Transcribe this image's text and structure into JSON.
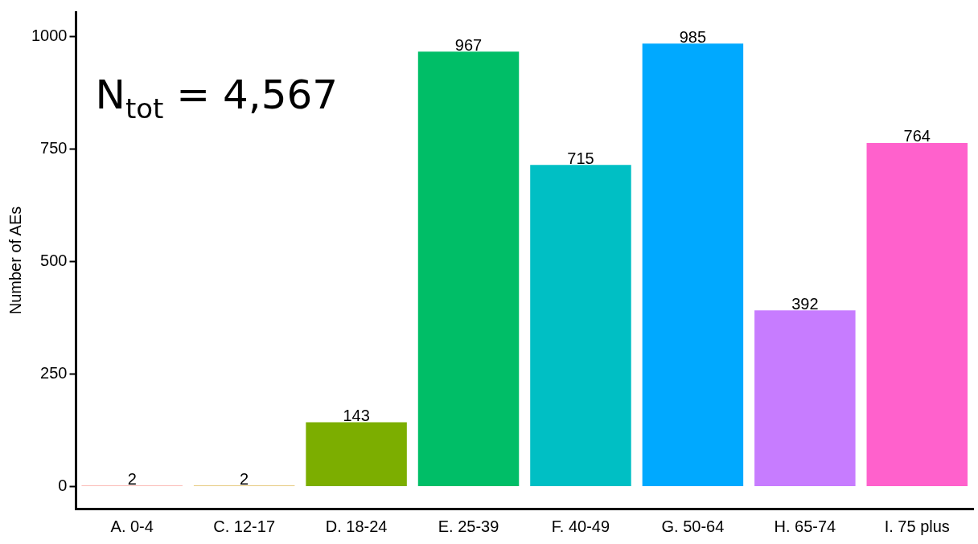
{
  "chart_data": {
    "type": "bar",
    "ylabel": "Number of AEs",
    "categories": [
      "A. 0-4",
      "C. 12-17",
      "D. 18-24",
      "E. 25-39",
      "F. 40-49",
      "G. 50-64",
      "H. 65-74",
      "I. 75 plus"
    ],
    "values": [
      2,
      2,
      143,
      967,
      715,
      985,
      392,
      764
    ],
    "colors": [
      "#f8766d",
      "#cd9600",
      "#7cae00",
      "#00be67",
      "#00bfc4",
      "#00a9ff",
      "#c77cff",
      "#ff61cc"
    ],
    "ylim": [
      -49,
      1055
    ],
    "yticks": [
      0,
      250,
      500,
      750,
      1000
    ],
    "grid": false,
    "legend": false,
    "data_labels": true,
    "annotations": [
      "N$_{tot}$ = 4,567"
    ]
  }
}
